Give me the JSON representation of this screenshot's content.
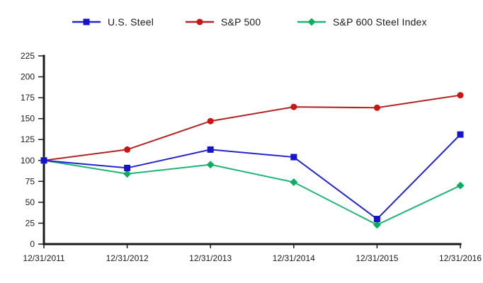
{
  "chart_data": {
    "type": "line",
    "title": "",
    "xlabel": "",
    "ylabel": "",
    "categories": [
      "12/31/2011",
      "12/31/2012",
      "12/31/2013",
      "12/31/2014",
      "12/31/2015",
      "12/31/2016"
    ],
    "series": [
      {
        "name": "U.S. Steel",
        "marker": "square",
        "line_color": "#2424CC",
        "marker_color": "#1414C8",
        "values": [
          100,
          91,
          113,
          104,
          30,
          131
        ]
      },
      {
        "name": "S&P 500",
        "marker": "circle",
        "line_color": "#B42222",
        "marker_color": "#CC1414",
        "values": [
          100,
          113,
          147,
          164,
          163,
          178
        ]
      },
      {
        "name": "S&P 600 Steel Index",
        "marker": "diamond",
        "line_color": "#1CB573",
        "marker_color": "#0CAD60",
        "values": [
          100,
          84,
          95,
          74,
          23,
          70
        ]
      }
    ],
    "ylim": [
      0,
      225
    ],
    "yticks": [
      0,
      25,
      50,
      75,
      100,
      125,
      150,
      175,
      200,
      225
    ],
    "grid": false,
    "legend_position": "top",
    "axis_color": "#1A1A1A",
    "tick_label_color": "#1A1A1A"
  }
}
